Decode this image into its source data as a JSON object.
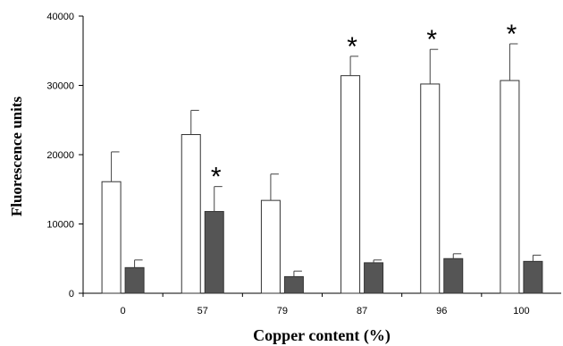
{
  "chart_data": {
    "type": "bar",
    "title": "",
    "xlabel": "Copper content (%)",
    "ylabel": "Fluorescence units",
    "ylim": [
      0,
      40000
    ],
    "yticks": [
      "0",
      "10000",
      "20000",
      "30000",
      "40000"
    ],
    "categories": [
      "0",
      "57",
      "79",
      "87",
      "96",
      "100"
    ],
    "grid": false,
    "legend": "none",
    "series": [
      {
        "color": "#ffffff",
        "values": [
          16100,
          22900,
          13400,
          31400,
          30200,
          30700
        ],
        "error": [
          4300,
          3500,
          3800,
          2800,
          5000,
          5300
        ],
        "significant": [
          false,
          false,
          false,
          true,
          true,
          true
        ]
      },
      {
        "color": "#555555",
        "values": [
          3700,
          11800,
          2400,
          4400,
          5000,
          4600
        ],
        "error": [
          1100,
          3600,
          800,
          400,
          700,
          900
        ],
        "significant": [
          false,
          true,
          false,
          false,
          false,
          false
        ]
      }
    ],
    "significance_marker": "*"
  }
}
